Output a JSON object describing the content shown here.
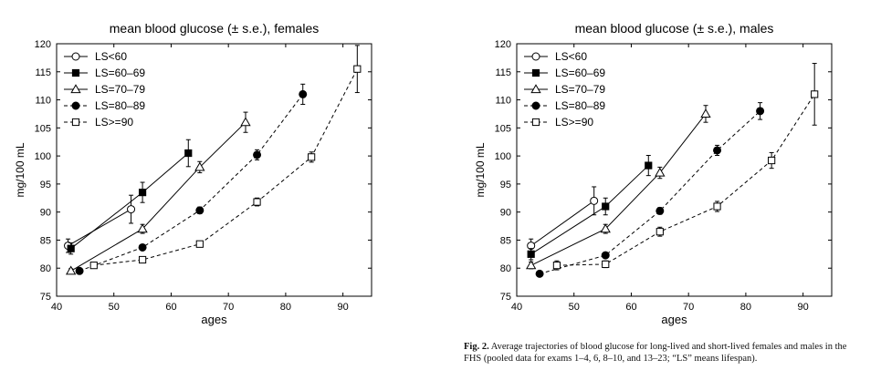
{
  "chart_data": [
    {
      "type": "line",
      "title": "mean blood glucose (± s.e.), females",
      "xlabel": "ages",
      "ylabel": "mg/100 mL",
      "xlim": [
        40,
        95
      ],
      "ylim": [
        75,
        120
      ],
      "xticks": [
        "40",
        "50",
        "60",
        "70",
        "80",
        "90"
      ],
      "yticks": [
        "75",
        "80",
        "85",
        "90",
        "95",
        "100",
        "105",
        "110",
        "115",
        "120"
      ],
      "grid": false,
      "legend": "top-left",
      "series": [
        {
          "name": "LS<60",
          "marker": "circle-open",
          "dash": "solid",
          "points": [
            {
              "x": 42,
              "y": 84,
              "se": 1.2
            },
            {
              "x": 53,
              "y": 90.5,
              "se": 2.5
            }
          ]
        },
        {
          "name": "LS=60–69",
          "marker": "square-filled",
          "dash": "solid",
          "points": [
            {
              "x": 42.5,
              "y": 83.5,
              "se": 1.0
            },
            {
              "x": 55,
              "y": 93.5,
              "se": 1.8
            },
            {
              "x": 63,
              "y": 100.5,
              "se": 2.4
            }
          ]
        },
        {
          "name": "LS=70–79",
          "marker": "triangle-open",
          "dash": "solid",
          "points": [
            {
              "x": 42.5,
              "y": 79.5,
              "se": 0.4
            },
            {
              "x": 55,
              "y": 87,
              "se": 0.8
            },
            {
              "x": 65,
              "y": 98,
              "se": 1.0
            },
            {
              "x": 73,
              "y": 106,
              "se": 1.8
            }
          ]
        },
        {
          "name": "LS=80–89",
          "marker": "circle-filled",
          "dash": "dashed",
          "points": [
            {
              "x": 44,
              "y": 79.5,
              "se": 0.4
            },
            {
              "x": 55,
              "y": 83.7,
              "se": 0.5
            },
            {
              "x": 65,
              "y": 90.3,
              "se": 0.6
            },
            {
              "x": 75,
              "y": 100.2,
              "se": 0.9
            },
            {
              "x": 83,
              "y": 111,
              "se": 1.8
            }
          ]
        },
        {
          "name": "LS>=90",
          "marker": "square-open",
          "dash": "dashed",
          "points": [
            {
              "x": 46.5,
              "y": 80.5,
              "se": 0.4
            },
            {
              "x": 55,
              "y": 81.5,
              "se": 0.5
            },
            {
              "x": 65,
              "y": 84.3,
              "se": 0.5
            },
            {
              "x": 75,
              "y": 91.8,
              "se": 0.7
            },
            {
              "x": 84.5,
              "y": 99.8,
              "se": 0.9
            },
            {
              "x": 92.5,
              "y": 115.5,
              "se": 4.2
            }
          ]
        }
      ]
    },
    {
      "type": "line",
      "title": "mean blood glucose (± s.e.), males",
      "xlabel": "ages",
      "ylabel": "mg/100 mL",
      "xlim": [
        40,
        95
      ],
      "ylim": [
        75,
        120
      ],
      "xticks": [
        "40",
        "50",
        "60",
        "70",
        "80",
        "90"
      ],
      "yticks": [
        "75",
        "80",
        "85",
        "90",
        "95",
        "100",
        "105",
        "110",
        "115",
        "120"
      ],
      "grid": false,
      "legend": "top-left",
      "series": [
        {
          "name": "LS<60",
          "marker": "circle-open",
          "dash": "solid",
          "points": [
            {
              "x": 42.5,
              "y": 84,
              "se": 1.2
            },
            {
              "x": 53.5,
              "y": 92,
              "se": 2.5
            }
          ]
        },
        {
          "name": "LS=60–69",
          "marker": "square-filled",
          "dash": "solid",
          "points": [
            {
              "x": 42.5,
              "y": 82.5,
              "se": 1.0
            },
            {
              "x": 55.5,
              "y": 91,
              "se": 1.5
            },
            {
              "x": 63,
              "y": 98.3,
              "se": 1.8
            }
          ]
        },
        {
          "name": "LS=70–79",
          "marker": "triangle-open",
          "dash": "solid",
          "points": [
            {
              "x": 42.5,
              "y": 80.5,
              "se": 0.6
            },
            {
              "x": 55.5,
              "y": 87,
              "se": 0.8
            },
            {
              "x": 65,
              "y": 97,
              "se": 1.0
            },
            {
              "x": 73,
              "y": 107.5,
              "se": 1.5
            }
          ]
        },
        {
          "name": "LS=80–89",
          "marker": "circle-filled",
          "dash": "dashed",
          "points": [
            {
              "x": 44,
              "y": 79,
              "se": 0.4
            },
            {
              "x": 55.5,
              "y": 82.3,
              "se": 0.5
            },
            {
              "x": 65,
              "y": 90.2,
              "se": 0.6
            },
            {
              "x": 75,
              "y": 101,
              "se": 0.9
            },
            {
              "x": 82.5,
              "y": 108,
              "se": 1.5
            }
          ]
        },
        {
          "name": "LS>=90",
          "marker": "square-open",
          "dash": "dashed",
          "points": [
            {
              "x": 47,
              "y": 80.5,
              "se": 0.8
            },
            {
              "x": 55.5,
              "y": 80.7,
              "se": 0.6
            },
            {
              "x": 65,
              "y": 86.5,
              "se": 0.8
            },
            {
              "x": 75,
              "y": 91,
              "se": 0.9
            },
            {
              "x": 84.5,
              "y": 99.2,
              "se": 1.4
            },
            {
              "x": 92,
              "y": 111,
              "se": 5.5
            }
          ]
        }
      ]
    }
  ],
  "caption": {
    "label": "Fig. 2.",
    "text": "Average trajectories of blood glucose for long-lived and short-lived females and males in the FHS (pooled data for exams 1–4, 6, 8–10, and 13–23; “LS” means lifespan)."
  }
}
